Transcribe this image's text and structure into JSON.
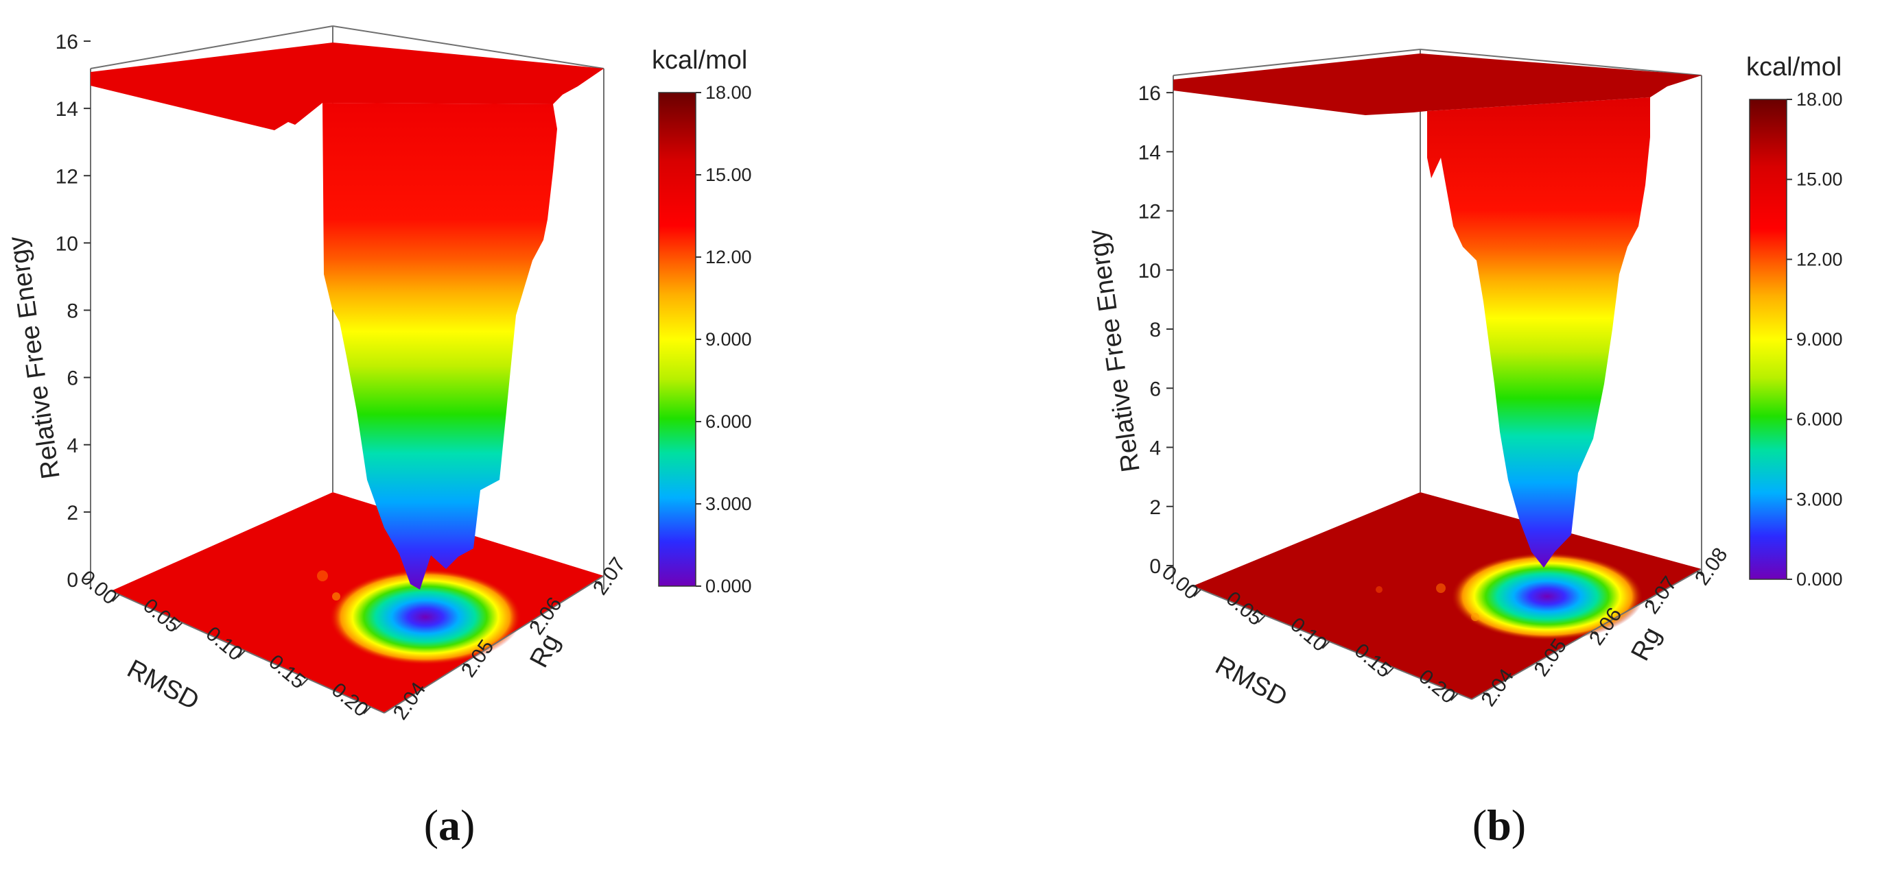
{
  "palette": [
    "#7000b8",
    "#2b2bff",
    "#00b0ff",
    "#00e0a0",
    "#20e000",
    "#b8f000",
    "#ffff00",
    "#ffb000",
    "#ff5a00",
    "#ff0000",
    "#d80000",
    "#7a0000"
  ],
  "chart_data": [
    {
      "panel": "a",
      "panel_label": "(a)",
      "type": "surface3d",
      "zlabel": "Relative Free Energy",
      "xlabel": "RMSD",
      "ylabel": "Rg",
      "z_ticks": [
        "0",
        "2",
        "4",
        "6",
        "8",
        "10",
        "12",
        "14",
        "16"
      ],
      "x_ticks": [
        "0.00",
        "0.05",
        "0.10",
        "0.15",
        "0.20"
      ],
      "y_ticks": [
        "2.04",
        "2.05",
        "2.06",
        "2.07"
      ],
      "zlim": [
        0,
        16
      ],
      "colorbar": {
        "unit": "kcal/mol",
        "range": [
          0,
          18
        ],
        "ticks": [
          "0.000",
          "3.000",
          "6.000",
          "9.000",
          "12.00",
          "15.00",
          "18.00"
        ]
      },
      "minimum": {
        "rmsd": 0.11,
        "rg": 2.055,
        "energy": 0
      }
    },
    {
      "panel": "b",
      "panel_label": "(b)",
      "type": "surface3d",
      "zlabel": "Relative Free Energy",
      "xlabel": "RMSD",
      "ylabel": "Rg",
      "z_ticks": [
        "0",
        "2",
        "4",
        "6",
        "8",
        "10",
        "12",
        "14",
        "16"
      ],
      "x_ticks": [
        "0.00",
        "0.05",
        "0.10",
        "0.15",
        "0.20"
      ],
      "y_ticks": [
        "2.04",
        "2.05",
        "2.06",
        "2.07",
        "2.08"
      ],
      "zlim": [
        0,
        17
      ],
      "colorbar": {
        "unit": "kcal/mol",
        "range": [
          0,
          18
        ],
        "ticks": [
          "0.000",
          "3.000",
          "6.000",
          "9.000",
          "12.00",
          "15.00",
          "18.00"
        ]
      },
      "minimum": {
        "rmsd": 0.12,
        "rg": 2.065,
        "energy": 0
      }
    }
  ]
}
